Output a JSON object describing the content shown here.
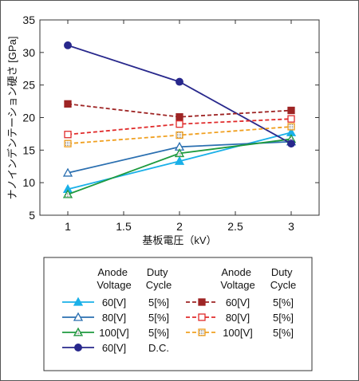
{
  "chart_data": {
    "type": "line",
    "xlabel": "基板電圧（kV）",
    "ylabel": "ナノインデンテーション硬さ [GPa]",
    "xlim": [
      0.75,
      3.25
    ],
    "ylim": [
      5,
      35
    ],
    "x_ticks": [
      "1",
      "1.5",
      "2",
      "2.5",
      "3"
    ],
    "y_ticks": [
      "5",
      "10",
      "15",
      "20",
      "25",
      "30",
      "35"
    ],
    "x_tick_values": [
      1,
      1.5,
      2,
      2.5,
      3
    ],
    "y_tick_values": [
      5,
      10,
      15,
      20,
      25,
      30,
      35
    ],
    "grid": false,
    "legend_position": "bottom",
    "legend_headers": {
      "anode_line1": "Anode",
      "anode_line2": "Voltage",
      "duty_line1": "Duty",
      "duty_line2": "Cycle"
    },
    "series": [
      {
        "name": "60[V] 5[%]",
        "anode": "60[V]",
        "duty": "5[%]",
        "color": "#1ab0e8",
        "marker": "triangle-filled",
        "dash": false,
        "x": [
          1,
          2,
          3
        ],
        "y": [
          9.0,
          13.3,
          17.7
        ]
      },
      {
        "name": "80[V] 5[%]",
        "anode": "80[V]",
        "duty": "5[%]",
        "color": "#2a6fb0",
        "marker": "triangle-open",
        "dash": false,
        "x": [
          1,
          2,
          3
        ],
        "y": [
          11.5,
          15.5,
          16.3
        ]
      },
      {
        "name": "100[V] 5[%]",
        "anode": "100[V]",
        "duty": "5[%]",
        "color": "#1e9a3e",
        "marker": "triangle-hatched",
        "dash": false,
        "x": [
          1,
          2,
          3
        ],
        "y": [
          8.2,
          14.5,
          16.7
        ]
      },
      {
        "name": "60[V] D.C.",
        "anode": "60[V]",
        "duty": "D.C.",
        "color": "#28288c",
        "marker": "circle-filled",
        "dash": false,
        "x": [
          1,
          2,
          3
        ],
        "y": [
          31.1,
          25.5,
          16.0
        ]
      },
      {
        "name": "60[V] 5[%] (dashed)",
        "anode": "60[V]",
        "duty": "5[%]",
        "color": "#9e2424",
        "marker": "square-filled",
        "dash": true,
        "x": [
          1,
          2,
          3
        ],
        "y": [
          22.1,
          20.1,
          21.1
        ]
      },
      {
        "name": "80[V] 5[%] (dashed)",
        "anode": "80[V]",
        "duty": "5[%]",
        "color": "#e02b2b",
        "marker": "square-open",
        "dash": true,
        "x": [
          1,
          2,
          3
        ],
        "y": [
          17.4,
          19.0,
          19.8
        ]
      },
      {
        "name": "100[V] 5[%] (dashed)",
        "anode": "100[V]",
        "duty": "5[%]",
        "color": "#f0a020",
        "marker": "square-hatched",
        "dash": true,
        "x": [
          1,
          2,
          3
        ],
        "y": [
          16.0,
          17.3,
          18.6
        ]
      }
    ]
  }
}
